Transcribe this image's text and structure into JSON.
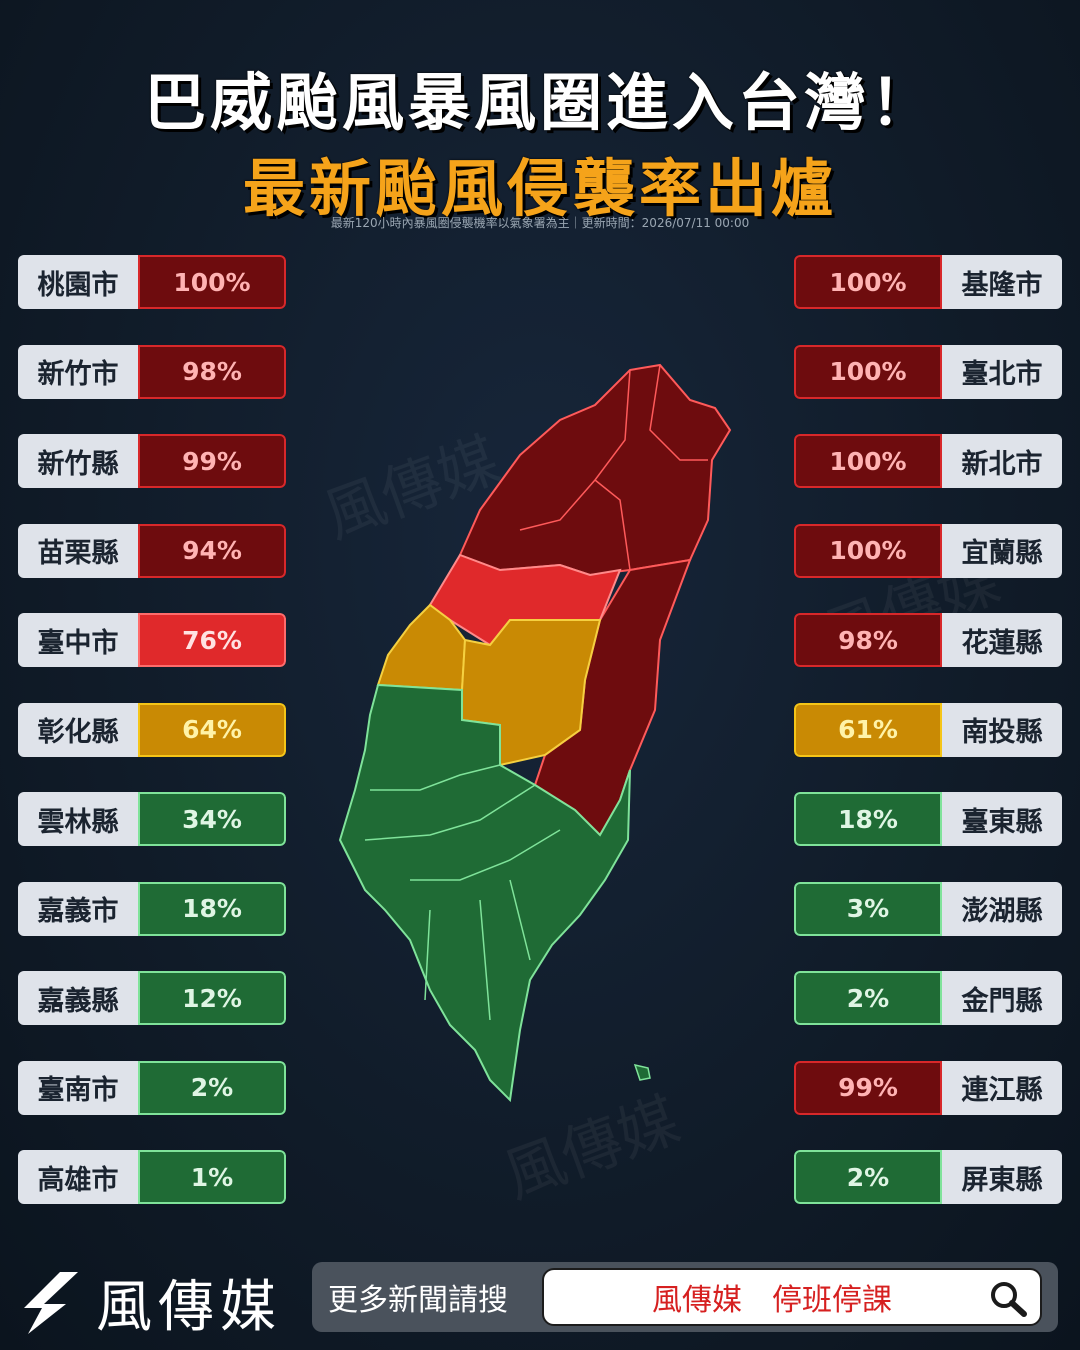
{
  "header": {
    "title_line1": "巴威颱風暴風圈進入台灣！",
    "title_line2": "最新颱風侵襲率出爐",
    "subtitle": "最新120小時內暴風圈侵襲機率以氣象署為主｜更新時間：2026/07/11 00:00"
  },
  "left_list": [
    {
      "name": "桃園市",
      "value": "100%",
      "level": "dred"
    },
    {
      "name": "新竹市",
      "value": "98%",
      "level": "dred"
    },
    {
      "name": "新竹縣",
      "value": "99%",
      "level": "dred"
    },
    {
      "name": "苗栗縣",
      "value": "94%",
      "level": "dred"
    },
    {
      "name": "臺中市",
      "value": "76%",
      "level": "red"
    },
    {
      "name": "彰化縣",
      "value": "64%",
      "level": "orange"
    },
    {
      "name": "雲林縣",
      "value": "34%",
      "level": "green"
    },
    {
      "name": "嘉義市",
      "value": "18%",
      "level": "green"
    },
    {
      "name": "嘉義縣",
      "value": "12%",
      "level": "green"
    },
    {
      "name": "臺南市",
      "value": "2%",
      "level": "green"
    },
    {
      "name": "高雄市",
      "value": "1%",
      "level": "green"
    }
  ],
  "right_list": [
    {
      "name": "基隆市",
      "value": "100%",
      "level": "dred"
    },
    {
      "name": "臺北市",
      "value": "100%",
      "level": "dred"
    },
    {
      "name": "新北市",
      "value": "100%",
      "level": "dred"
    },
    {
      "name": "宜蘭縣",
      "value": "100%",
      "level": "dred"
    },
    {
      "name": "花蓮縣",
      "value": "98%",
      "level": "dred"
    },
    {
      "name": "南投縣",
      "value": "61%",
      "level": "orange"
    },
    {
      "name": "臺東縣",
      "value": "18%",
      "level": "green"
    },
    {
      "name": "澎湖縣",
      "value": "3%",
      "level": "green"
    },
    {
      "name": "金門縣",
      "value": "2%",
      "level": "green"
    },
    {
      "name": "連江縣",
      "value": "99%",
      "level": "dred"
    },
    {
      "name": "屏東縣",
      "value": "2%",
      "level": "green"
    }
  ],
  "colors": {
    "dred": "#6e0c0e",
    "red": "#e0292b",
    "orange": "#c98a04",
    "green": "#1f6b35",
    "title_accent": "#f5a31a"
  },
  "footer": {
    "brand": "風傳媒",
    "search_label": "更多新聞請搜",
    "search_query": "風傳媒　停班停課",
    "search_icon": "magnifier-icon"
  },
  "watermark": "風傳媒"
}
